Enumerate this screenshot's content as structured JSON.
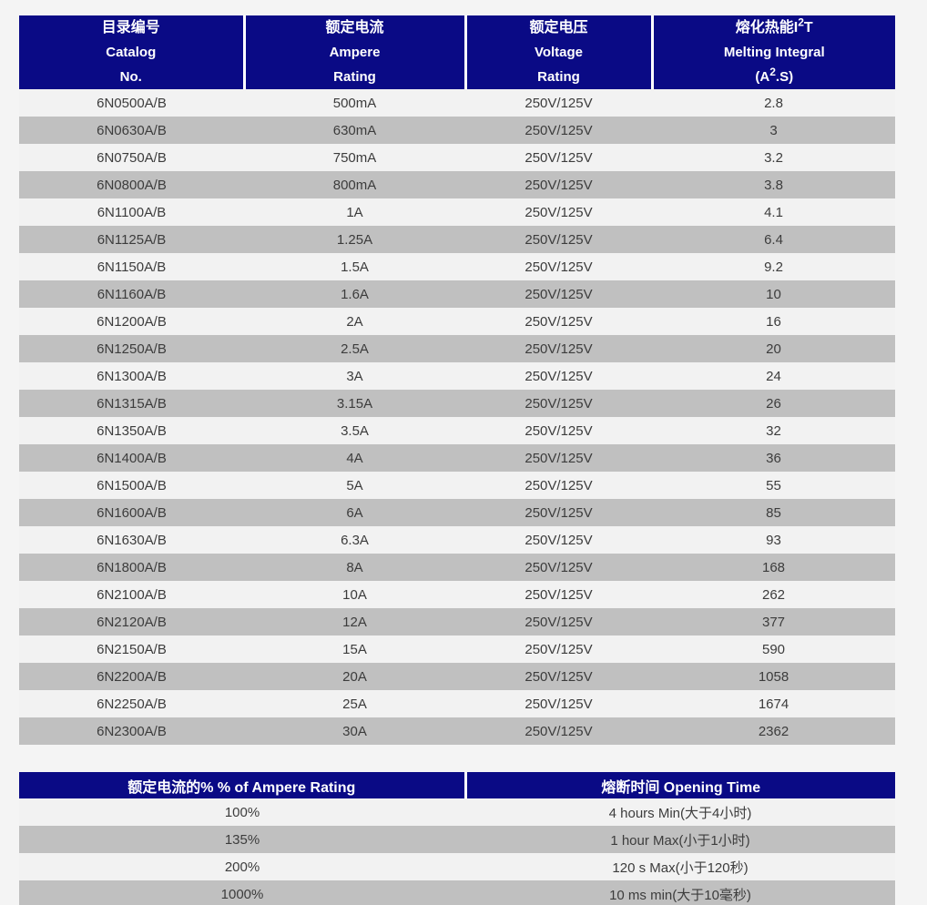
{
  "colors": {
    "header_bg": "#0a0a85",
    "header_text": "#ffffff",
    "row_light": "#f2f2f2",
    "row_dark": "#c0c0c0",
    "body_text": "#3c3c3c",
    "page_bg": "#f4f4f4"
  },
  "main_table": {
    "columns": [
      {
        "line1": "目录编号",
        "line2": "Catalog",
        "line3": "No."
      },
      {
        "line1": "额定电流",
        "line2": "Ampere",
        "line3": "Rating"
      },
      {
        "line1": "额定电压",
        "line2": "Voltage",
        "line3": "Rating"
      },
      {
        "line1_pre": "熔化热能I",
        "line1_sup": "2",
        "line1_post": "T",
        "line2": "Melting Integral",
        "line3_pre": "(A",
        "line3_sup": "2",
        "line3_post": ".S)"
      }
    ],
    "rows": [
      {
        "catalog": "6N0500A/B",
        "ampere": "500mA",
        "voltage": "250V/125V",
        "melting": "2.8"
      },
      {
        "catalog": "6N0630A/B",
        "ampere": "630mA",
        "voltage": "250V/125V",
        "melting": "3"
      },
      {
        "catalog": "6N0750A/B",
        "ampere": "750mA",
        "voltage": "250V/125V",
        "melting": "3.2"
      },
      {
        "catalog": "6N0800A/B",
        "ampere": "800mA",
        "voltage": "250V/125V",
        "melting": "3.8"
      },
      {
        "catalog": "6N1100A/B",
        "ampere": "1A",
        "voltage": "250V/125V",
        "melting": "4.1"
      },
      {
        "catalog": "6N1125A/B",
        "ampere": "1.25A",
        "voltage": "250V/125V",
        "melting": "6.4"
      },
      {
        "catalog": "6N1150A/B",
        "ampere": "1.5A",
        "voltage": "250V/125V",
        "melting": "9.2"
      },
      {
        "catalog": "6N1160A/B",
        "ampere": "1.6A",
        "voltage": "250V/125V",
        "melting": "10"
      },
      {
        "catalog": "6N1200A/B",
        "ampere": "2A",
        "voltage": "250V/125V",
        "melting": "16"
      },
      {
        "catalog": "6N1250A/B",
        "ampere": "2.5A",
        "voltage": "250V/125V",
        "melting": "20"
      },
      {
        "catalog": "6N1300A/B",
        "ampere": "3A",
        "voltage": "250V/125V",
        "melting": "24"
      },
      {
        "catalog": "6N1315A/B",
        "ampere": "3.15A",
        "voltage": "250V/125V",
        "melting": "26"
      },
      {
        "catalog": "6N1350A/B",
        "ampere": "3.5A",
        "voltage": "250V/125V",
        "melting": "32"
      },
      {
        "catalog": "6N1400A/B",
        "ampere": "4A",
        "voltage": "250V/125V",
        "melting": "36"
      },
      {
        "catalog": "6N1500A/B",
        "ampere": "5A",
        "voltage": "250V/125V",
        "melting": "55"
      },
      {
        "catalog": "6N1600A/B",
        "ampere": "6A",
        "voltage": "250V/125V",
        "melting": "85"
      },
      {
        "catalog": "6N1630A/B",
        "ampere": "6.3A",
        "voltage": "250V/125V",
        "melting": "93"
      },
      {
        "catalog": "6N1800A/B",
        "ampere": "8A",
        "voltage": "250V/125V",
        "melting": "168"
      },
      {
        "catalog": "6N2100A/B",
        "ampere": "10A",
        "voltage": "250V/125V",
        "melting": "262"
      },
      {
        "catalog": "6N2120A/B",
        "ampere": "12A",
        "voltage": "250V/125V",
        "melting": "377"
      },
      {
        "catalog": "6N2150A/B",
        "ampere": "15A",
        "voltage": "250V/125V",
        "melting": "590"
      },
      {
        "catalog": "6N2200A/B",
        "ampere": "20A",
        "voltage": "250V/125V",
        "melting": "1058"
      },
      {
        "catalog": "6N2250A/B",
        "ampere": "25A",
        "voltage": "250V/125V",
        "melting": "1674"
      },
      {
        "catalog": "6N2300A/B",
        "ampere": "30A",
        "voltage": "250V/125V",
        "melting": "2362"
      }
    ]
  },
  "opening_table": {
    "headers": [
      "额定电流的% % of Ampere Rating",
      "熔断时间 Opening Time"
    ],
    "rows": [
      {
        "percent": "100%",
        "time": "4 hours Min(大于4小时)"
      },
      {
        "percent": "135%",
        "time": "1 hour Max(小于1小时)"
      },
      {
        "percent": "200%",
        "time": "120 s Max(小于120秒)"
      },
      {
        "percent": "1000%",
        "time": "10 ms min(大于10毫秒)"
      }
    ]
  }
}
